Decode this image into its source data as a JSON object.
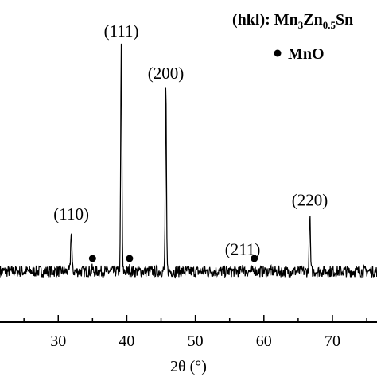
{
  "chart_data": {
    "type": "line",
    "xlabel": "2θ (°)",
    "xlim": [
      21.5,
      76.5
    ],
    "ylim": [
      0,
      100
    ],
    "x_ticks": [
      30,
      40,
      50,
      60,
      70
    ],
    "series": [
      {
        "peaks": [
          {
            "x": 31.9,
            "y": 22
          },
          {
            "x": 35.0,
            "y": 5
          },
          {
            "x": 39.2,
            "y": 100
          },
          {
            "x": 40.4,
            "y": 5
          },
          {
            "x": 45.7,
            "y": 82
          },
          {
            "x": 56.9,
            "y": 7
          },
          {
            "x": 58.6,
            "y": 5
          },
          {
            "x": 66.7,
            "y": 28
          }
        ],
        "baseline": 4,
        "noise": 2.5
      }
    ],
    "annotations": [
      {
        "label": "(110)",
        "x": 31.9
      },
      {
        "label": "(111)",
        "x": 39.2
      },
      {
        "label": "(200)",
        "x": 45.7
      },
      {
        "label": "(211)",
        "x": 56.9
      },
      {
        "label": "(220)",
        "x": 66.7
      }
    ],
    "impurity_markers": [
      35.0,
      40.4,
      58.6
    ],
    "legend": {
      "hkl_prefix": "(hkl): Mn",
      "sub1": "3",
      "mid1": "Zn",
      "sub2": "0.5",
      "tail": "Sn",
      "marker_label": "MnO"
    }
  }
}
